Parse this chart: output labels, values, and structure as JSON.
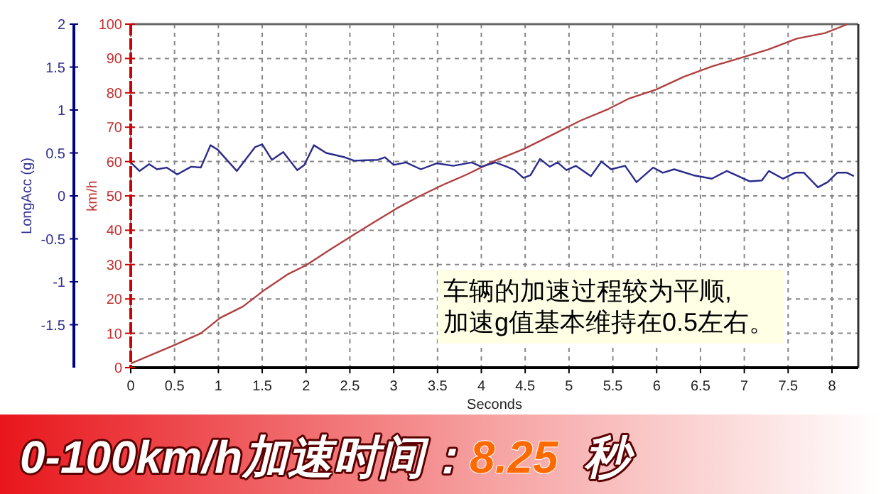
{
  "chart_data": {
    "type": "line",
    "title": "0-100km/h加速时间：",
    "subtitle": "8.25 秒",
    "xlabel": "Seconds",
    "ylabel": "km/h",
    "y2label": "LongAcc (g)",
    "annotations": [
      "车辆的加速过程较为平顺,\n加速g值基本维持在0.5左右。"
    ],
    "xlim": [
      0,
      8.3
    ],
    "xticks": [
      0,
      0.5,
      1,
      1.5,
      2,
      2.5,
      3,
      3.5,
      4,
      4.5,
      5,
      5.5,
      6,
      6.5,
      7,
      7.5,
      8
    ],
    "ylim": [
      0,
      100
    ],
    "yticks": [
      0,
      10,
      20,
      30,
      40,
      50,
      60,
      70,
      80,
      90,
      100
    ],
    "y2lim": [
      -2,
      2
    ],
    "y2ticks": [
      2,
      1.5,
      1,
      0.5,
      0,
      -0.5,
      -1,
      -1.5
    ],
    "grid": true,
    "series": [
      {
        "color": "#b04040",
        "x": [
          0,
          0.5,
          0.8,
          1.02,
          1.28,
          1.53,
          1.8,
          2.0,
          2.27,
          2.55,
          2.76,
          3.03,
          3.3,
          3.57,
          3.84,
          4.16,
          4.48,
          4.81,
          5.13,
          5.45,
          5.69,
          5.99,
          6.31,
          6.63,
          6.95,
          7.27,
          7.6,
          7.92,
          8.18
        ],
        "values": [
          1.2,
          6.6,
          10,
          14.5,
          17.8,
          22.7,
          27.3,
          29.8,
          34.3,
          38.8,
          42.1,
          46.3,
          50,
          53.3,
          56.3,
          60.3,
          63.6,
          67.8,
          71.9,
          75.3,
          78.4,
          80.9,
          84.7,
          87.7,
          90.1,
          92.6,
          95.8,
          97.4,
          100
        ]
      },
      {
        "color": "#2b2b8c",
        "axis": "y2",
        "x": [
          0,
          0.1,
          0.21,
          0.3,
          0.41,
          0.53,
          0.69,
          0.8,
          0.91,
          0.99,
          1.21,
          1.42,
          1.5,
          1.61,
          1.74,
          1.9,
          1.98,
          2.09,
          2.23,
          2.44,
          2.55,
          2.82,
          2.9,
          3.0,
          3.14,
          3.31,
          3.49,
          3.68,
          3.89,
          4.0,
          4.16,
          4.29,
          4.38,
          4.48,
          4.56,
          4.67,
          4.78,
          4.87,
          4.97,
          5.08,
          5.25,
          5.37,
          5.48,
          5.64,
          5.77,
          5.96,
          6.07,
          6.2,
          6.42,
          6.63,
          6.8,
          7.06,
          7.2,
          7.28,
          7.44,
          7.58,
          7.68,
          7.84,
          7.95,
          8.06,
          8.17,
          8.25
        ],
        "values": [
          0.39,
          0.29,
          0.37,
          0.31,
          0.33,
          0.25,
          0.34,
          0.33,
          0.59,
          0.54,
          0.29,
          0.57,
          0.6,
          0.42,
          0.51,
          0.3,
          0.36,
          0.59,
          0.5,
          0.45,
          0.41,
          0.42,
          0.45,
          0.36,
          0.39,
          0.31,
          0.38,
          0.35,
          0.39,
          0.34,
          0.39,
          0.34,
          0.3,
          0.21,
          0.24,
          0.43,
          0.34,
          0.39,
          0.3,
          0.35,
          0.23,
          0.4,
          0.31,
          0.35,
          0.16,
          0.33,
          0.27,
          0.31,
          0.24,
          0.2,
          0.29,
          0.17,
          0.18,
          0.29,
          0.2,
          0.27,
          0.27,
          0.1,
          0.16,
          0.27,
          0.27,
          0.23
        ]
      }
    ]
  }
}
